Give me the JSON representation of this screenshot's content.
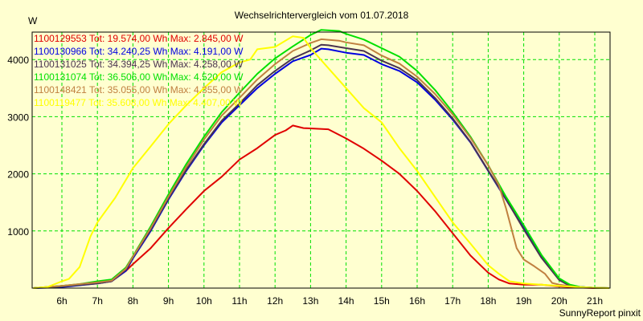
{
  "chart_data": {
    "type": "line",
    "title": "Wechselrichtervergleich vom 01.07.2018",
    "ylabel": "W",
    "xlabel": "",
    "footer": "SunnyReport pinxit",
    "xlim": [
      5.16,
      21.4
    ],
    "ylim": [
      0,
      4520
    ],
    "grid": true,
    "legend_position": "top-left",
    "x_ticks": [
      {
        "value": 6,
        "label": "6h"
      },
      {
        "value": 7,
        "label": "7h"
      },
      {
        "value": 8,
        "label": "8h"
      },
      {
        "value": 9,
        "label": "9h"
      },
      {
        "value": 10,
        "label": "10h"
      },
      {
        "value": 11,
        "label": "11h"
      },
      {
        "value": 12,
        "label": "12h"
      },
      {
        "value": 13,
        "label": "13h"
      },
      {
        "value": 14,
        "label": "14h"
      },
      {
        "value": 15,
        "label": "15h"
      },
      {
        "value": 16,
        "label": "16h"
      },
      {
        "value": 17,
        "label": "17h"
      },
      {
        "value": 18,
        "label": "18h"
      },
      {
        "value": 19,
        "label": "19h"
      },
      {
        "value": 20,
        "label": "20h"
      },
      {
        "value": 21,
        "label": "21h"
      }
    ],
    "y_ticks": [
      {
        "value": 1000,
        "label": "1000"
      },
      {
        "value": 2000,
        "label": "2000"
      },
      {
        "value": 3000,
        "label": "3000"
      },
      {
        "value": 4000,
        "label": "4000"
      }
    ],
    "series": [
      {
        "name": "1100129553",
        "legend": "1100129553 Tot: 19.574,00 Wh Max: 2.845,00 W",
        "color": "#e00000",
        "points": [
          [
            5.2,
            0
          ],
          [
            6,
            40
          ],
          [
            7,
            90
          ],
          [
            7.4,
            120
          ],
          [
            7.8,
            300
          ],
          [
            8,
            420
          ],
          [
            8.5,
            700
          ],
          [
            9,
            1050
          ],
          [
            9.5,
            1380
          ],
          [
            10,
            1700
          ],
          [
            10.5,
            1950
          ],
          [
            11,
            2250
          ],
          [
            11.5,
            2450
          ],
          [
            12,
            2680
          ],
          [
            12.3,
            2760
          ],
          [
            12.5,
            2845
          ],
          [
            12.8,
            2800
          ],
          [
            13.5,
            2780
          ],
          [
            14,
            2620
          ],
          [
            14.5,
            2440
          ],
          [
            15,
            2230
          ],
          [
            15.5,
            2000
          ],
          [
            16,
            1700
          ],
          [
            16.5,
            1350
          ],
          [
            17,
            960
          ],
          [
            17.5,
            570
          ],
          [
            18,
            270
          ],
          [
            18.3,
            150
          ],
          [
            18.6,
            80
          ],
          [
            19,
            60
          ],
          [
            19.5,
            60
          ],
          [
            20,
            30
          ],
          [
            20.5,
            10
          ],
          [
            21,
            0
          ],
          [
            21.4,
            0
          ]
        ]
      },
      {
        "name": "1100130966",
        "legend": "1100130966 Tot: 34.240,25 Wh Max: 4.191,00 W",
        "color": "#0000e0",
        "points": [
          [
            5.2,
            0
          ],
          [
            5.8,
            10
          ],
          [
            6.2,
            30
          ],
          [
            7,
            80
          ],
          [
            7.4,
            120
          ],
          [
            7.8,
            300
          ],
          [
            8,
            520
          ],
          [
            8.5,
            1000
          ],
          [
            9,
            1550
          ],
          [
            9.5,
            2050
          ],
          [
            10,
            2500
          ],
          [
            10.5,
            2900
          ],
          [
            11,
            3200
          ],
          [
            11.5,
            3500
          ],
          [
            12,
            3750
          ],
          [
            12.5,
            3970
          ],
          [
            13,
            4080
          ],
          [
            13.3,
            4191
          ],
          [
            13.5,
            4180
          ],
          [
            14,
            4120
          ],
          [
            14.5,
            4080
          ],
          [
            15,
            3920
          ],
          [
            15.5,
            3800
          ],
          [
            16,
            3600
          ],
          [
            16.5,
            3300
          ],
          [
            17,
            2950
          ],
          [
            17.5,
            2550
          ],
          [
            18,
            2050
          ],
          [
            18.5,
            1550
          ],
          [
            19,
            1050
          ],
          [
            19.5,
            550
          ],
          [
            20,
            150
          ],
          [
            20.3,
            50
          ],
          [
            20.6,
            20
          ],
          [
            21,
            5
          ],
          [
            21.4,
            0
          ]
        ]
      },
      {
        "name": "1100131025",
        "legend": "1100131025 Tot: 34.394,25 Wh Max: 4.258,00 W",
        "color": "#4a3450",
        "points": [
          [
            5.2,
            0
          ],
          [
            6,
            30
          ],
          [
            7,
            80
          ],
          [
            7.4,
            120
          ],
          [
            7.8,
            320
          ],
          [
            8,
            540
          ],
          [
            8.5,
            1020
          ],
          [
            9,
            1570
          ],
          [
            9.5,
            2070
          ],
          [
            10,
            2520
          ],
          [
            10.5,
            2930
          ],
          [
            11,
            3230
          ],
          [
            11.5,
            3550
          ],
          [
            12,
            3800
          ],
          [
            12.5,
            4020
          ],
          [
            13,
            4160
          ],
          [
            13.3,
            4258
          ],
          [
            13.5,
            4250
          ],
          [
            14,
            4200
          ],
          [
            14.5,
            4150
          ],
          [
            15,
            3980
          ],
          [
            15.5,
            3850
          ],
          [
            16,
            3640
          ],
          [
            16.5,
            3330
          ],
          [
            17,
            2970
          ],
          [
            17.5,
            2560
          ],
          [
            18,
            2060
          ],
          [
            18.5,
            1560
          ],
          [
            19,
            1030
          ],
          [
            19.5,
            530
          ],
          [
            20,
            140
          ],
          [
            20.3,
            40
          ],
          [
            20.6,
            20
          ],
          [
            21,
            5
          ],
          [
            21.4,
            0
          ]
        ]
      },
      {
        "name": "1100131074",
        "legend": "1100131074 Tot: 36.506,00 Wh Max: 4.520,00 W",
        "color": "#00e000",
        "points": [
          [
            5.2,
            0
          ],
          [
            6,
            40
          ],
          [
            6.5,
            70
          ],
          [
            7,
            120
          ],
          [
            7.4,
            150
          ],
          [
            7.8,
            360
          ],
          [
            8,
            560
          ],
          [
            8.5,
            1080
          ],
          [
            9,
            1640
          ],
          [
            9.5,
            2170
          ],
          [
            10,
            2650
          ],
          [
            10.5,
            3080
          ],
          [
            11,
            3420
          ],
          [
            11.5,
            3750
          ],
          [
            12,
            4020
          ],
          [
            12.5,
            4230
          ],
          [
            13,
            4430
          ],
          [
            13.3,
            4520
          ],
          [
            13.8,
            4500
          ],
          [
            14,
            4450
          ],
          [
            14.5,
            4350
          ],
          [
            15,
            4200
          ],
          [
            15.5,
            4050
          ],
          [
            16,
            3800
          ],
          [
            16.5,
            3470
          ],
          [
            17,
            3080
          ],
          [
            17.5,
            2650
          ],
          [
            18,
            2150
          ],
          [
            18.5,
            1600
          ],
          [
            19,
            1100
          ],
          [
            19.5,
            580
          ],
          [
            20,
            170
          ],
          [
            20.3,
            60
          ],
          [
            20.6,
            20
          ],
          [
            21,
            5
          ],
          [
            21.4,
            0
          ]
        ]
      },
      {
        "name": "1100148421",
        "legend": "1100148421 Tot: 35.055,00 Wh Max: 4.355,00 W",
        "color": "#c08040",
        "points": [
          [
            5.2,
            0
          ],
          [
            6,
            40
          ],
          [
            6.5,
            70
          ],
          [
            7,
            100
          ],
          [
            7.4,
            130
          ],
          [
            7.8,
            340
          ],
          [
            8,
            550
          ],
          [
            8.5,
            1050
          ],
          [
            9,
            1600
          ],
          [
            9.5,
            2120
          ],
          [
            10,
            2600
          ],
          [
            10.5,
            3020
          ],
          [
            11,
            3330
          ],
          [
            11.5,
            3650
          ],
          [
            12,
            3920
          ],
          [
            12.5,
            4150
          ],
          [
            13,
            4290
          ],
          [
            13.3,
            4355
          ],
          [
            13.8,
            4330
          ],
          [
            14,
            4300
          ],
          [
            14.5,
            4250
          ],
          [
            15,
            4070
          ],
          [
            15.5,
            3930
          ],
          [
            16,
            3700
          ],
          [
            16.5,
            3400
          ],
          [
            17,
            3040
          ],
          [
            17.5,
            2630
          ],
          [
            18,
            2150
          ],
          [
            18.3,
            1800
          ],
          [
            18.5,
            1400
          ],
          [
            18.8,
            700
          ],
          [
            19,
            500
          ],
          [
            19.3,
            380
          ],
          [
            19.6,
            250
          ],
          [
            19.8,
            90
          ],
          [
            20,
            60
          ],
          [
            20.5,
            20
          ],
          [
            21,
            5
          ],
          [
            21.4,
            0
          ]
        ]
      },
      {
        "name": "1100119477",
        "legend": "1100119477 Tot: 35.608,00 Wh Max: 4.407,00 W",
        "color": "#ffff00",
        "points": [
          [
            5.2,
            0
          ],
          [
            5.6,
            20
          ],
          [
            6,
            120
          ],
          [
            6.2,
            160
          ],
          [
            6.5,
            370
          ],
          [
            6.8,
            900
          ],
          [
            7,
            1150
          ],
          [
            7.5,
            1580
          ],
          [
            8,
            2100
          ],
          [
            8.5,
            2480
          ],
          [
            9,
            2870
          ],
          [
            9.5,
            3200
          ],
          [
            10,
            3500
          ],
          [
            10.5,
            3780
          ],
          [
            11,
            3950
          ],
          [
            11.3,
            4000
          ],
          [
            11.5,
            4180
          ],
          [
            12,
            4220
          ],
          [
            12.5,
            4407
          ],
          [
            12.8,
            4380
          ],
          [
            13,
            4200
          ],
          [
            13.5,
            3850
          ],
          [
            14,
            3500
          ],
          [
            14.5,
            3150
          ],
          [
            15,
            2900
          ],
          [
            15.5,
            2450
          ],
          [
            16,
            2050
          ],
          [
            16.5,
            1600
          ],
          [
            17,
            1150
          ],
          [
            17.5,
            780
          ],
          [
            18,
            400
          ],
          [
            18.3,
            250
          ],
          [
            18.6,
            120
          ],
          [
            19,
            80
          ],
          [
            19.5,
            60
          ],
          [
            20,
            40
          ],
          [
            20.5,
            20
          ],
          [
            21,
            5
          ],
          [
            21.4,
            0
          ]
        ]
      }
    ]
  }
}
